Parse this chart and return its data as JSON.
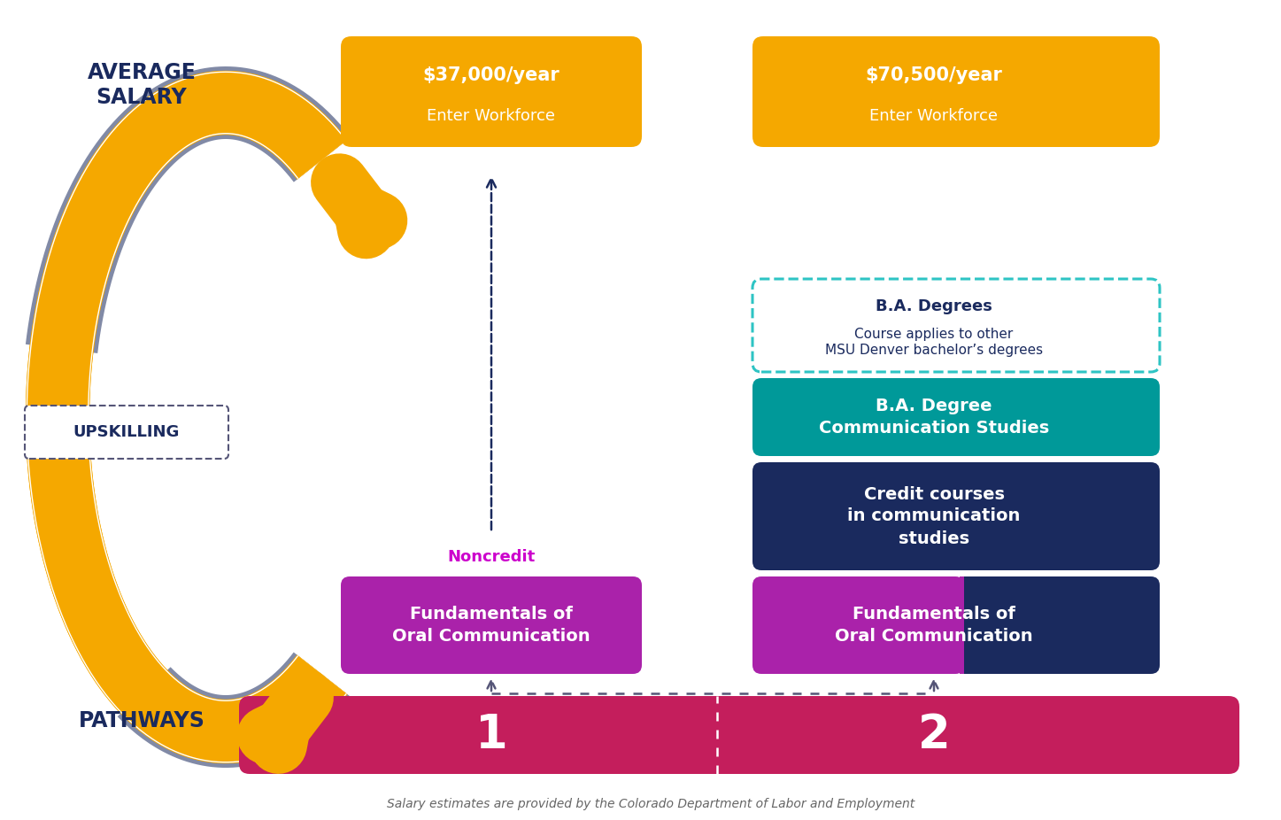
{
  "bg_color": "#ffffff",
  "title_avg_salary": "AVERAGE\nSALARY",
  "title_pathways": "PATHWAYS",
  "upskilling_label": "UPSKILLING",
  "noncredit_label": "Noncredit",
  "footnote": "Salary estimates are provided by the Colorado Department of Labor and Employment",
  "pathway1_num": "1",
  "pathway2_num": "2",
  "salary1_line1": "$37,000/year",
  "salary1_line2": "Enter Workforce",
  "salary1_color": "#F5A800",
  "salary2_line1": "$70,500/year",
  "salary2_line2": "Enter Workforce",
  "salary2_color": "#F5A800",
  "ba_degrees_line1": "B.A. Degrees",
  "ba_degrees_line2": "Course applies to other\nMSU Denver bachelor’s degrees",
  "ba_degrees_border_color": "#2EC4C4",
  "ba_comm_text": "B.A. Degree\nCommunication Studies",
  "ba_comm_color": "#009999",
  "credit_text": "Credit courses\nin communication\nstudies",
  "credit_color": "#1A2A5E",
  "fund_oc_purple_text": "Fundamentals of\nOral Communication",
  "fund_oc_purple_color": "#AA22AA",
  "fund_oc_right_text": "Fundamentals of\nOral Communication",
  "fund_oc_right_purple": "#AA22AA",
  "fund_oc_right_navy": "#1A2A5E",
  "pathway_bar_color": "#C41E5C",
  "arrow_color": "#F5A800",
  "dark_navy": "#1A2A5E",
  "upskilling_border": "#555577",
  "magenta_label": "#CC00CC",
  "arrow_dashed_color": "#555577"
}
